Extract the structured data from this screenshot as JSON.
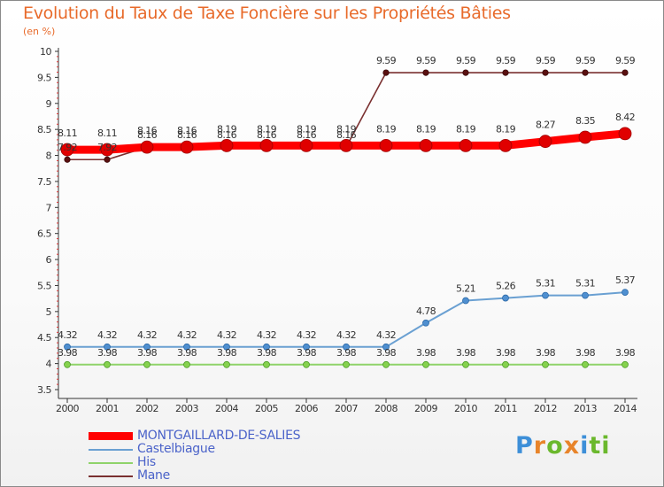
{
  "header": {
    "title": "Evolution du Taux de Taxe Foncière sur les Propriétés Bâties",
    "unit": "(en %)"
  },
  "logo": {
    "letters": [
      "P",
      "r",
      "o",
      "x",
      "i",
      "t",
      "i"
    ]
  },
  "chart_data": {
    "type": "line",
    "title": "Evolution du Taux de Taxe Foncière sur les Propriétés Bâties",
    "ylabel": "(en %)",
    "xlabel": "",
    "categories": [
      "2000",
      "2001",
      "2002",
      "2003",
      "2004",
      "2005",
      "2006",
      "2007",
      "2008",
      "2009",
      "2010",
      "2011",
      "2012",
      "2013",
      "2014"
    ],
    "ylim": [
      3.5,
      10
    ],
    "yticks": [
      "3.5",
      "4",
      "4.5",
      "5",
      "5.5",
      "6",
      "6.5",
      "7",
      "7.5",
      "8",
      "8.5",
      "9",
      "9.5",
      "10"
    ],
    "series": [
      {
        "name": "MONTGAILLARD-DE-SALIES",
        "color": "#ff0000",
        "values": [
          8.11,
          8.11,
          8.16,
          8.16,
          8.19,
          8.19,
          8.19,
          8.19,
          8.19,
          8.19,
          8.19,
          8.19,
          8.27,
          8.35,
          8.42
        ],
        "labels": [
          "8.11",
          "8.11",
          "8.16",
          "8.16",
          "8.19",
          "8.19",
          "8.19",
          "8.19",
          "8.19",
          "8.19",
          "8.19",
          "8.19",
          "8.27",
          "8.35",
          "8.42"
        ]
      },
      {
        "name": "Castelbiague",
        "color": "#6aa0d2",
        "values": [
          4.32,
          4.32,
          4.32,
          4.32,
          4.32,
          4.32,
          4.32,
          4.32,
          4.32,
          4.78,
          5.21,
          5.26,
          5.31,
          5.31,
          5.37
        ],
        "labels": [
          "4.32",
          "4.32",
          "4.32",
          "4.32",
          "4.32",
          "4.32",
          "4.32",
          "4.32",
          "4.32",
          "4.78",
          "5.21",
          "5.26",
          "5.31",
          "5.31",
          "5.37"
        ]
      },
      {
        "name": "His",
        "color": "#8fd36a",
        "values": [
          3.98,
          3.98,
          3.98,
          3.98,
          3.98,
          3.98,
          3.98,
          3.98,
          3.98,
          3.98,
          3.98,
          3.98,
          3.98,
          3.98,
          3.98
        ],
        "labels": [
          "3.98",
          "3.98",
          "3.98",
          "3.98",
          "3.98",
          "3.98",
          "3.98",
          "3.98",
          "3.98",
          "3.98",
          "3.98",
          "3.98",
          "3.98",
          "3.98",
          "3.98"
        ]
      },
      {
        "name": "Mane",
        "color": "#7a3030",
        "values": [
          7.92,
          7.92,
          8.16,
          8.16,
          8.16,
          8.16,
          8.16,
          8.16,
          9.59,
          9.59,
          9.59,
          9.59,
          9.59,
          9.59,
          9.59
        ],
        "labels": [
          "7.92",
          "7.92",
          "8.16",
          "8.16",
          "8.16",
          "8.16",
          "8.16",
          "8.16",
          "9.59",
          "9.59",
          "9.59",
          "9.59",
          "9.59",
          "9.59",
          "9.59"
        ]
      }
    ],
    "legend": {
      "position": "bottom-left",
      "entries": [
        "MONTGAILLARD-DE-SALIES",
        "Castelbiague",
        "His",
        "Mane"
      ]
    }
  }
}
